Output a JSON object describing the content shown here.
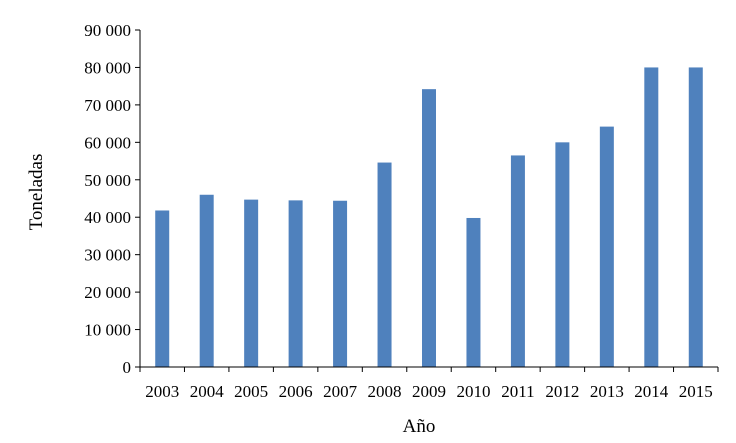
{
  "chart_data": {
    "type": "bar",
    "title": "",
    "xlabel": "Año",
    "ylabel": "Toneladas",
    "categories": [
      "2003",
      "2004",
      "2005",
      "2006",
      "2007",
      "2008",
      "2009",
      "2010",
      "2011",
      "2012",
      "2013",
      "2014",
      "2015"
    ],
    "values": [
      41800,
      46000,
      44700,
      44500,
      44400,
      54600,
      74200,
      39800,
      56500,
      60000,
      64200,
      80000,
      80000
    ],
    "ylim": [
      0,
      90000
    ],
    "yticks": [
      0,
      10000,
      20000,
      30000,
      40000,
      50000,
      60000,
      70000,
      80000,
      90000
    ],
    "ytick_labels": [
      "0",
      "10 000",
      "20 000",
      "30 000",
      "40 000",
      "50 000",
      "60 000",
      "70 000",
      "80 000",
      "90 000"
    ],
    "grid": false,
    "legend": "none",
    "bar_color": "#4f81bd",
    "axis_color": "#000000"
  }
}
